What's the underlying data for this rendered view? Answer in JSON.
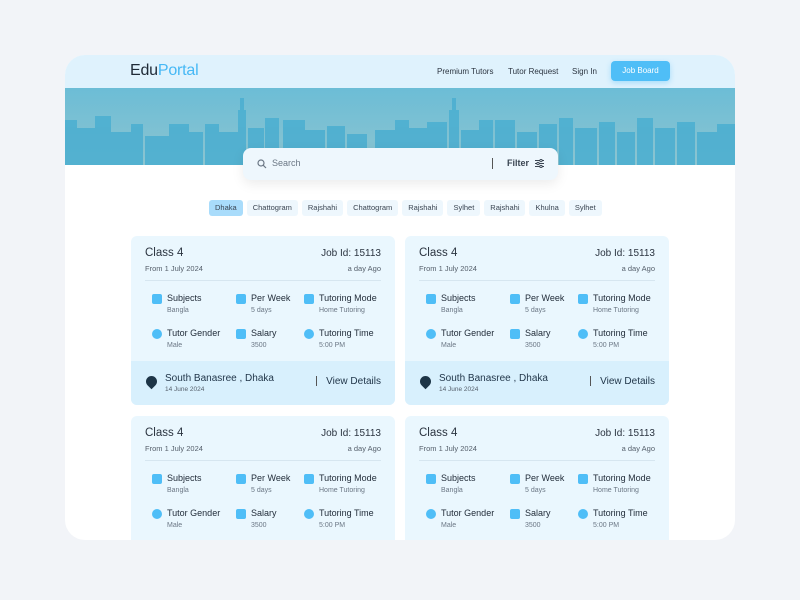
{
  "header": {
    "logo_a": "Edu",
    "logo_b": "Portal",
    "nav": [
      "Premium Tutors",
      "Tutor Request",
      "Sign In"
    ],
    "job_board": "Job Board"
  },
  "search": {
    "placeholder": "Search",
    "filter": "Filter"
  },
  "chips": [
    {
      "label": "Dhaka",
      "active": true
    },
    {
      "label": "Chattogram"
    },
    {
      "label": "Rajshahi"
    },
    {
      "label": "Chattogram"
    },
    {
      "label": "Rajshahi"
    },
    {
      "label": "Sylhet"
    },
    {
      "label": "Rajshahi"
    },
    {
      "label": "Khulna"
    },
    {
      "label": "Sylhet"
    }
  ],
  "colors": {
    "accent": "#4fbef7",
    "header_bg": "#dff2fd",
    "card_bg": "#eaf7fe",
    "footer_bg": "#d8f0fd"
  },
  "cards": [
    {
      "title": "Class 4",
      "job_id": "Job Id: 15113",
      "from": "From 1 July 2024",
      "ago": "a day Ago",
      "items": [
        {
          "icon": "book-icon",
          "label": "Subjects",
          "value": "Bangla"
        },
        {
          "icon": "calendar-icon",
          "label": "Per Week",
          "value": "5 days"
        },
        {
          "icon": "cube-icon",
          "label": "Tutoring Mode",
          "value": "Home Tutoring"
        },
        {
          "icon": "gender-icon",
          "label": "Tutor Gender",
          "value": "Male"
        },
        {
          "icon": "card-icon",
          "label": "Salary",
          "value": "3500"
        },
        {
          "icon": "clock-icon",
          "label": "Tutoring Time",
          "value": "5:00 PM"
        }
      ],
      "location": "South Banasree , Dhaka",
      "date": "14 June 2024",
      "view": "View Details"
    },
    {
      "title": "Class 4",
      "job_id": "Job Id: 15113",
      "from": "From 1 July 2024",
      "ago": "a day Ago",
      "items": [
        {
          "icon": "book-icon",
          "label": "Subjects",
          "value": "Bangla"
        },
        {
          "icon": "calendar-icon",
          "label": "Per Week",
          "value": "5 days"
        },
        {
          "icon": "cube-icon",
          "label": "Tutoring Mode",
          "value": "Home Tutoring"
        },
        {
          "icon": "gender-icon",
          "label": "Tutor Gender",
          "value": "Male"
        },
        {
          "icon": "card-icon",
          "label": "Salary",
          "value": "3500"
        },
        {
          "icon": "clock-icon",
          "label": "Tutoring Time",
          "value": "5:00 PM"
        }
      ],
      "location": "South Banasree , Dhaka",
      "date": "14 June 2024",
      "view": "View Details"
    },
    {
      "title": "Class 4",
      "job_id": "Job Id: 15113",
      "from": "From 1 July 2024",
      "ago": "a day Ago",
      "items": [
        {
          "icon": "book-icon",
          "label": "Subjects",
          "value": "Bangla"
        },
        {
          "icon": "calendar-icon",
          "label": "Per Week",
          "value": "5 days"
        },
        {
          "icon": "cube-icon",
          "label": "Tutoring Mode",
          "value": "Home Tutoring"
        },
        {
          "icon": "gender-icon",
          "label": "Tutor Gender",
          "value": "Male"
        },
        {
          "icon": "card-icon",
          "label": "Salary",
          "value": "3500"
        },
        {
          "icon": "clock-icon",
          "label": "Tutoring Time",
          "value": "5:00 PM"
        }
      ]
    },
    {
      "title": "Class 4",
      "job_id": "Job Id: 15113",
      "from": "From 1 July 2024",
      "ago": "a day Ago",
      "items": [
        {
          "icon": "book-icon",
          "label": "Subjects",
          "value": "Bangla"
        },
        {
          "icon": "calendar-icon",
          "label": "Per Week",
          "value": "5 days"
        },
        {
          "icon": "cube-icon",
          "label": "Tutoring Mode",
          "value": "Home Tutoring"
        },
        {
          "icon": "gender-icon",
          "label": "Tutor Gender",
          "value": "Male"
        },
        {
          "icon": "card-icon",
          "label": "Salary",
          "value": "3500"
        },
        {
          "icon": "clock-icon",
          "label": "Tutoring Time",
          "value": "5:00 PM"
        }
      ]
    }
  ]
}
